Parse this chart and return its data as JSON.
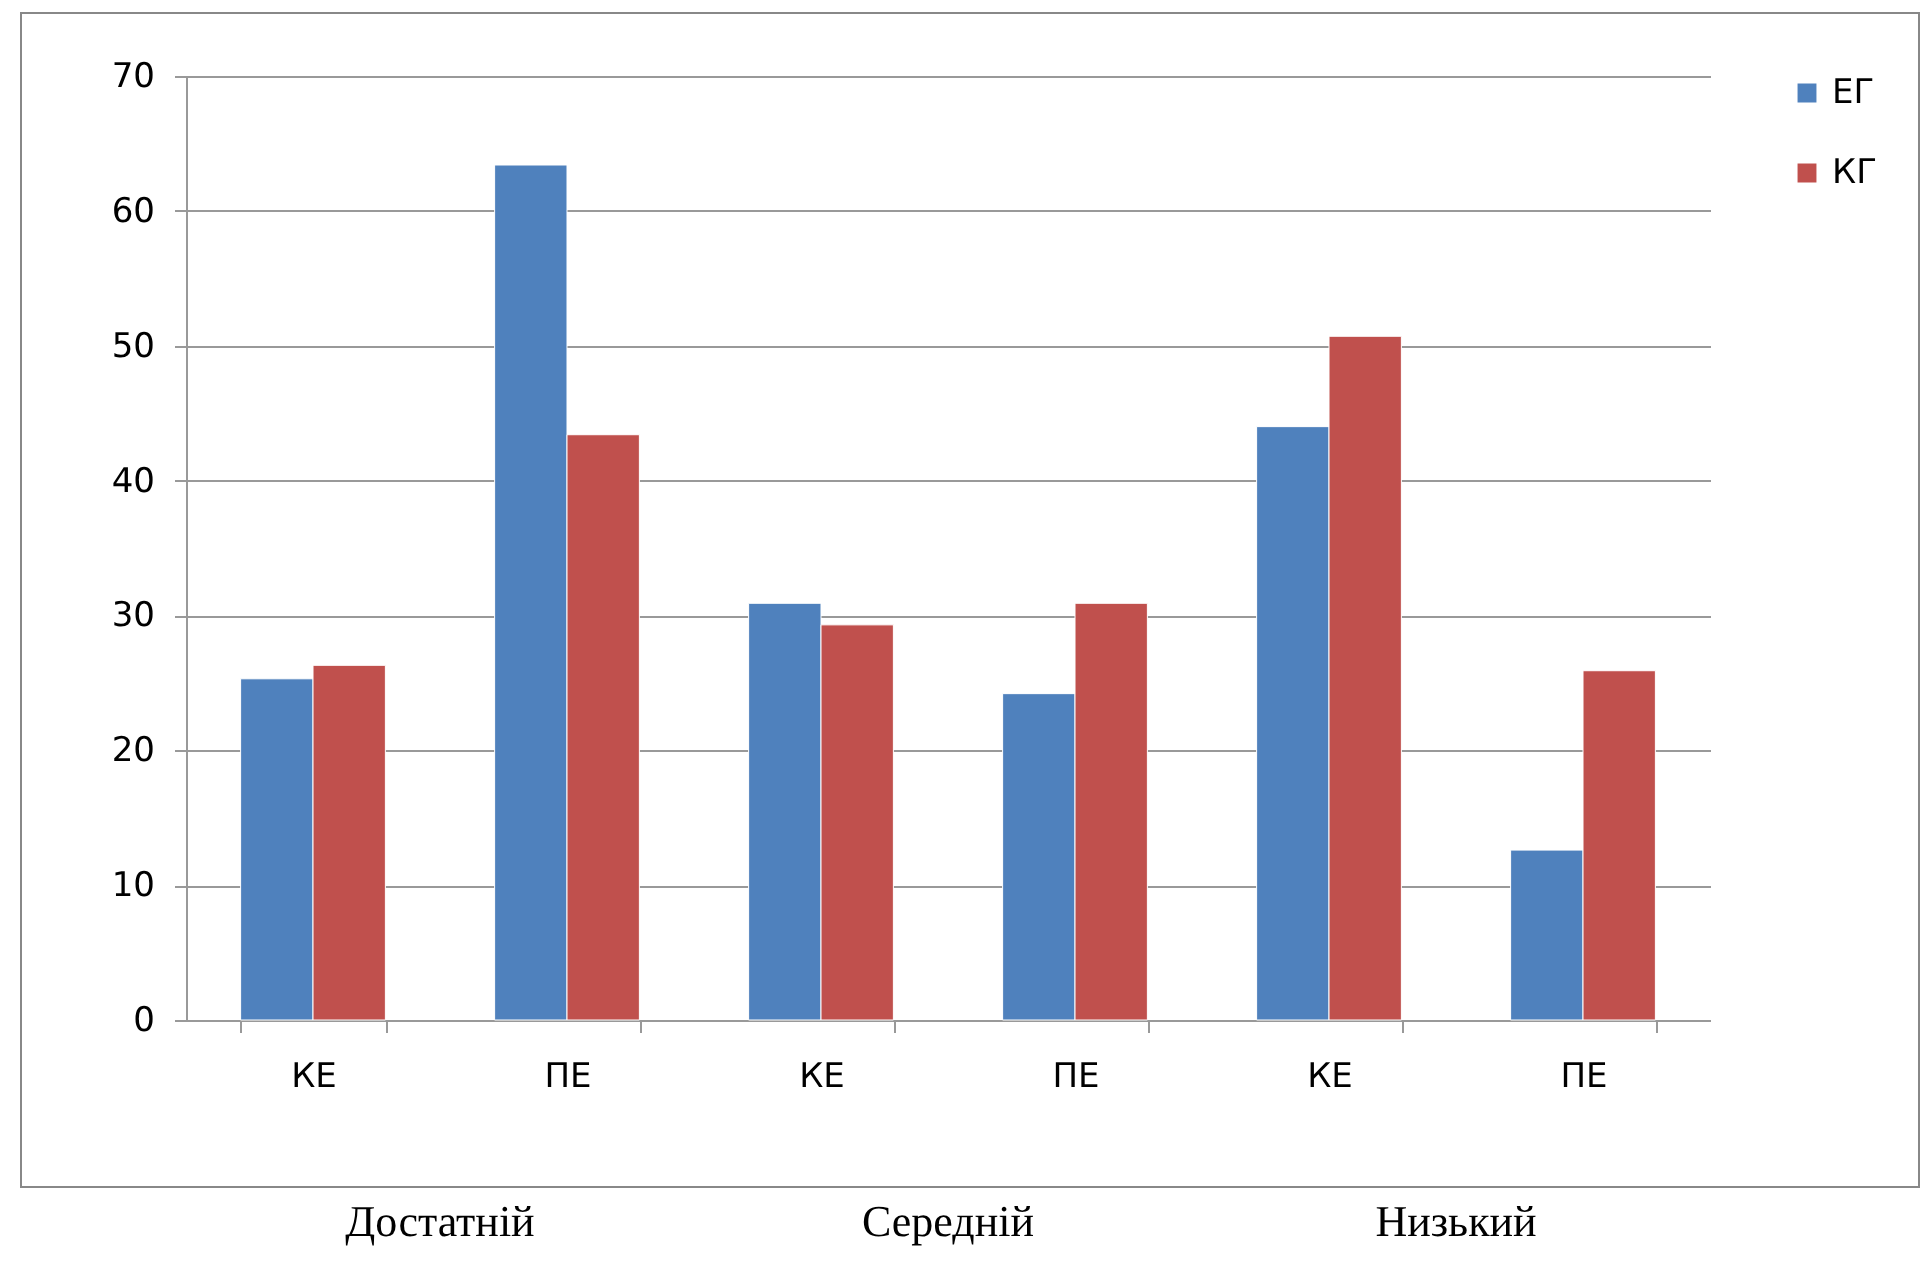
{
  "chart_data": {
    "type": "bar",
    "categories": [
      "КЕ",
      "ПЕ",
      "КЕ",
      "ПЕ",
      "КЕ",
      "ПЕ"
    ],
    "series": [
      {
        "name": "ЕГ",
        "color": "#4f81bd",
        "values": [
          25.3,
          63.4,
          30.9,
          24.2,
          44.0,
          12.6
        ]
      },
      {
        "name": "КГ",
        "color": "#c0504d",
        "values": [
          26.3,
          43.4,
          29.3,
          30.9,
          50.7,
          25.9
        ]
      }
    ],
    "ylim": [
      0,
      70
    ],
    "yticks": [
      0,
      10,
      20,
      30,
      40,
      50,
      60,
      70
    ],
    "grid": "y",
    "legend": "right",
    "annotations": [
      "Достатній",
      "Середній",
      "Низький"
    ]
  }
}
